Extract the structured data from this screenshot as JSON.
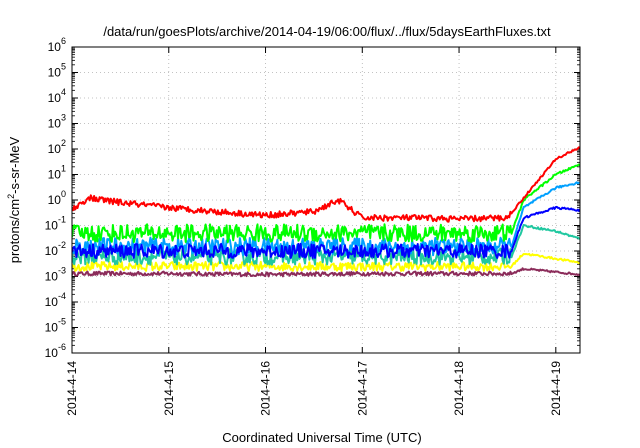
{
  "chart_data": {
    "type": "line",
    "title": "/data/run/goesPlots/archive/2014-04-19/06:00/flux/../flux/5daysEarthFluxes.txt",
    "xlabel": "Coordinated Universal Time (UTC)",
    "ylabel": {
      "prefix": "protons/cm",
      "sup": "2",
      "suffix": "-s-sr-MeV"
    },
    "x_scale": "time",
    "x_range": [
      "2014-04-14",
      "2014-04-19T06:00"
    ],
    "x_ticks": [
      "2014-4-14",
      "2014-4-15",
      "2014-4-16",
      "2014-4-17",
      "2014-4-18",
      "2014-4-19"
    ],
    "y_scale": "log",
    "y_range": [
      1e-06,
      1000000.0
    ],
    "y_ticks": [
      {
        "base": "10",
        "exp": "-6"
      },
      {
        "base": "10",
        "exp": "-5"
      },
      {
        "base": "10",
        "exp": "-4"
      },
      {
        "base": "10",
        "exp": "-3"
      },
      {
        "base": "10",
        "exp": "-2"
      },
      {
        "base": "10",
        "exp": "-1"
      },
      {
        "base": "10",
        "exp": "0"
      },
      {
        "base": "10",
        "exp": "1"
      },
      {
        "base": "10",
        "exp": "2"
      },
      {
        "base": "10",
        "exp": "3"
      },
      {
        "base": "10",
        "exp": "4"
      },
      {
        "base": "10",
        "exp": "5"
      },
      {
        "base": "10",
        "exp": "6"
      }
    ],
    "grid": true,
    "legend": "none",
    "series": [
      {
        "color": "#8b2c5a",
        "points": [
          [
            "2014-04-14T00:00",
            0.0013
          ],
          [
            "2014-04-15T00:00",
            0.0013
          ],
          [
            "2014-04-16T00:00",
            0.0012
          ],
          [
            "2014-04-17T00:00",
            0.0013
          ],
          [
            "2014-04-18T00:00",
            0.0013
          ],
          [
            "2014-04-18T13:00",
            0.0013
          ],
          [
            "2014-04-18T16:00",
            0.002
          ],
          [
            "2014-04-19T00:00",
            0.0015
          ],
          [
            "2014-04-19T06:00",
            0.0012
          ]
        ]
      },
      {
        "color": "#ffff00",
        "points": [
          [
            "2014-04-14T00:00",
            0.0025
          ],
          [
            "2014-04-15T00:00",
            0.0025
          ],
          [
            "2014-04-16T00:00",
            0.0025
          ],
          [
            "2014-04-17T00:00",
            0.0025
          ],
          [
            "2014-04-18T00:00",
            0.0025
          ],
          [
            "2014-04-18T13:00",
            0.0025
          ],
          [
            "2014-04-18T16:00",
            0.008
          ],
          [
            "2014-04-19T00:00",
            0.005
          ],
          [
            "2014-04-19T06:00",
            0.0035
          ]
        ]
      },
      {
        "color": "#20c8a0",
        "points": [
          [
            "2014-04-14T00:00",
            0.006
          ],
          [
            "2014-04-15T00:00",
            0.006
          ],
          [
            "2014-04-16T00:00",
            0.006
          ],
          [
            "2014-04-17T00:00",
            0.006
          ],
          [
            "2014-04-18T00:00",
            0.006
          ],
          [
            "2014-04-18T13:00",
            0.006
          ],
          [
            "2014-04-18T16:00",
            0.1
          ],
          [
            "2014-04-19T00:00",
            0.06
          ],
          [
            "2014-04-19T06:00",
            0.03
          ]
        ]
      },
      {
        "color": "#00a0ff",
        "points": [
          [
            "2014-04-14T00:00",
            0.015
          ],
          [
            "2014-04-15T00:00",
            0.015
          ],
          [
            "2014-04-16T00:00",
            0.015
          ],
          [
            "2014-04-17T00:00",
            0.015
          ],
          [
            "2014-04-18T00:00",
            0.015
          ],
          [
            "2014-04-18T13:00",
            0.015
          ],
          [
            "2014-04-18T16:00",
            0.5
          ],
          [
            "2014-04-19T00:00",
            3
          ],
          [
            "2014-04-19T06:00",
            5
          ]
        ]
      },
      {
        "color": "#0000ff",
        "points": [
          [
            "2014-04-14T00:00",
            0.01
          ],
          [
            "2014-04-15T00:00",
            0.01
          ],
          [
            "2014-04-16T00:00",
            0.01
          ],
          [
            "2014-04-17T00:00",
            0.01
          ],
          [
            "2014-04-18T00:00",
            0.01
          ],
          [
            "2014-04-18T13:00",
            0.01
          ],
          [
            "2014-04-18T16:00",
            0.2
          ],
          [
            "2014-04-19T00:00",
            0.5
          ],
          [
            "2014-04-19T06:00",
            0.4
          ]
        ]
      },
      {
        "color": "#00ff00",
        "points": [
          [
            "2014-04-14T00:00",
            0.05
          ],
          [
            "2014-04-15T00:00",
            0.05
          ],
          [
            "2014-04-16T00:00",
            0.05
          ],
          [
            "2014-04-17T00:00",
            0.05
          ],
          [
            "2014-04-18T00:00",
            0.05
          ],
          [
            "2014-04-18T13:00",
            0.05
          ],
          [
            "2014-04-18T16:00",
            1
          ],
          [
            "2014-04-19T00:00",
            10
          ],
          [
            "2014-04-19T06:00",
            25
          ]
        ]
      },
      {
        "color": "#ff0000",
        "points": [
          [
            "2014-04-14T00:00",
            0.4
          ],
          [
            "2014-04-14T04:00",
            1.2
          ],
          [
            "2014-04-14T12:00",
            0.8
          ],
          [
            "2014-04-15T00:00",
            0.5
          ],
          [
            "2014-04-15T12:00",
            0.35
          ],
          [
            "2014-04-16T00:00",
            0.25
          ],
          [
            "2014-04-16T12:00",
            0.35
          ],
          [
            "2014-04-16T18:00",
            1.0
          ],
          [
            "2014-04-17T00:00",
            0.2
          ],
          [
            "2014-04-17T12:00",
            0.2
          ],
          [
            "2014-04-18T00:00",
            0.18
          ],
          [
            "2014-04-18T12:00",
            0.2
          ],
          [
            "2014-04-18T16:00",
            1.2
          ],
          [
            "2014-04-19T00:00",
            40
          ],
          [
            "2014-04-19T06:00",
            120
          ]
        ]
      }
    ]
  }
}
